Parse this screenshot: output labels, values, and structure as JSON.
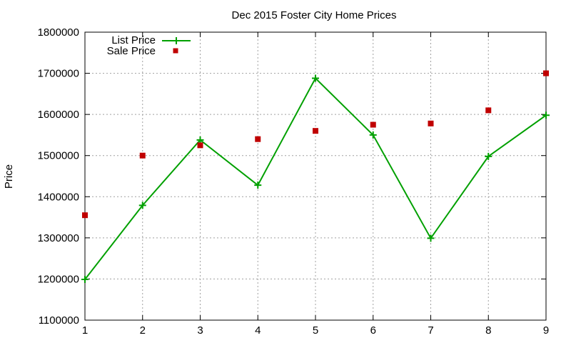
{
  "chart_data": {
    "type": "line",
    "title": "Dec 2015 Foster City Home Prices",
    "xlabel": "",
    "ylabel": "Price",
    "x": [
      1,
      2,
      3,
      4,
      5,
      6,
      7,
      8,
      9
    ],
    "xlim": [
      1,
      9
    ],
    "ylim": [
      1100000,
      1800000
    ],
    "yticks": [
      1100000,
      1200000,
      1300000,
      1400000,
      1500000,
      1600000,
      1700000,
      1800000
    ],
    "xticks": [
      1,
      2,
      3,
      4,
      5,
      6,
      7,
      8,
      9
    ],
    "grid": true,
    "legend_position": "top-left",
    "series": [
      {
        "name": "List Price",
        "style": "line-with-plus-markers",
        "color": "#00a000",
        "values": [
          1199000,
          1379000,
          1538000,
          1428000,
          1688000,
          1550000,
          1299000,
          1498000,
          1598000
        ]
      },
      {
        "name": "Sale Price",
        "style": "square-markers",
        "color": "#c00000",
        "values": [
          1355000,
          1500000,
          1525000,
          1540000,
          1560000,
          1575000,
          1578000,
          1610000,
          1700000
        ]
      }
    ]
  }
}
